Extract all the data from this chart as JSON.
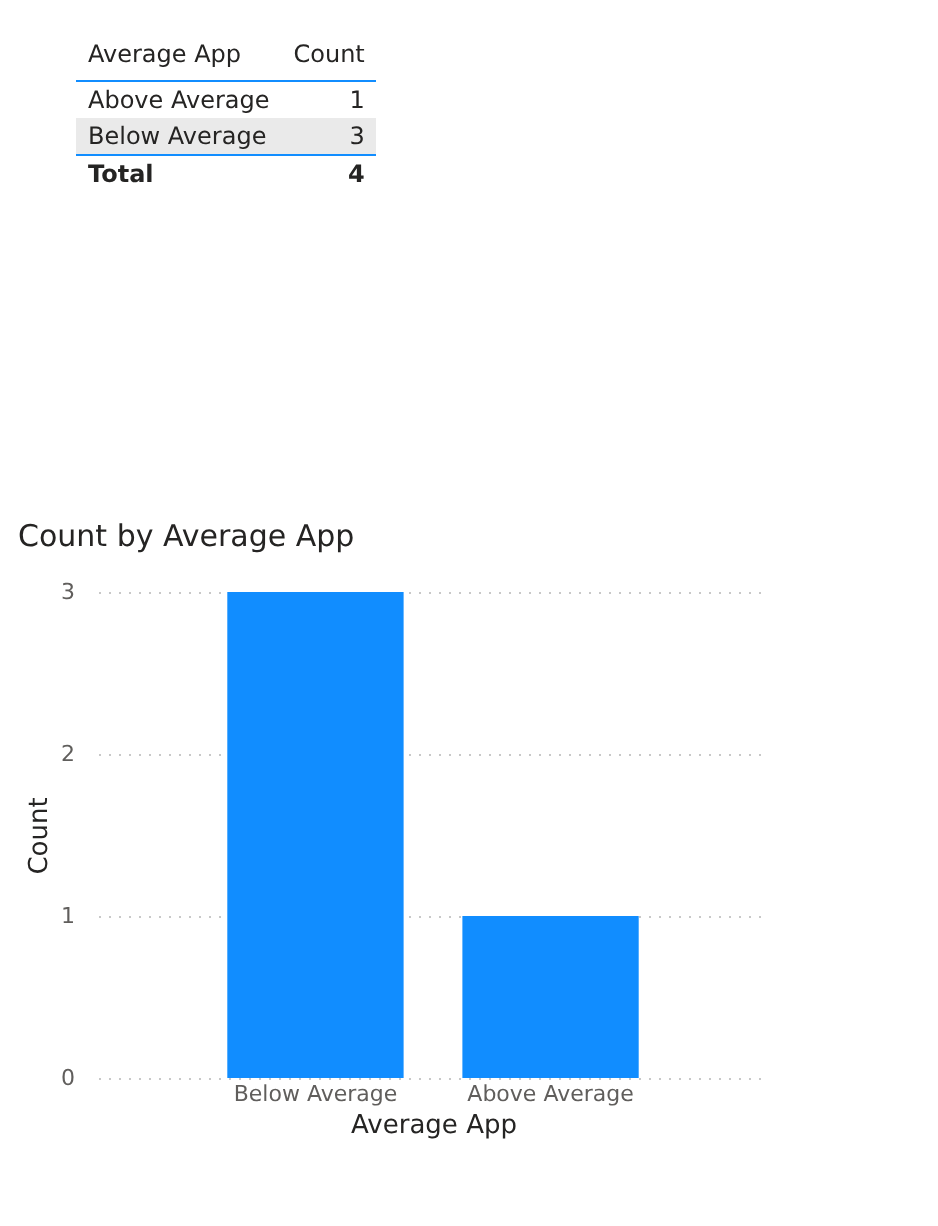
{
  "chart_data": [
    {
      "type": "other",
      "xlabel": "Average App",
      "ylabel": "Count",
      "categories": [
        "Above Average",
        "Below Average"
      ],
      "values": [
        1,
        3
      ],
      "data_labels": true,
      "annotations": [
        "Total"
      ],
      "totals": [
        "4"
      ]
    },
    {
      "type": "bar",
      "title": "Count by Average App",
      "xlabel": "Average App",
      "ylabel": "Count",
      "categories": [
        "Below Average",
        "Above Average"
      ],
      "values": [
        3,
        1
      ],
      "color": "#118dff",
      "ylim": [
        0,
        3
      ],
      "yticks": [
        0,
        1,
        2,
        3
      ],
      "grid": "y"
    }
  ]
}
